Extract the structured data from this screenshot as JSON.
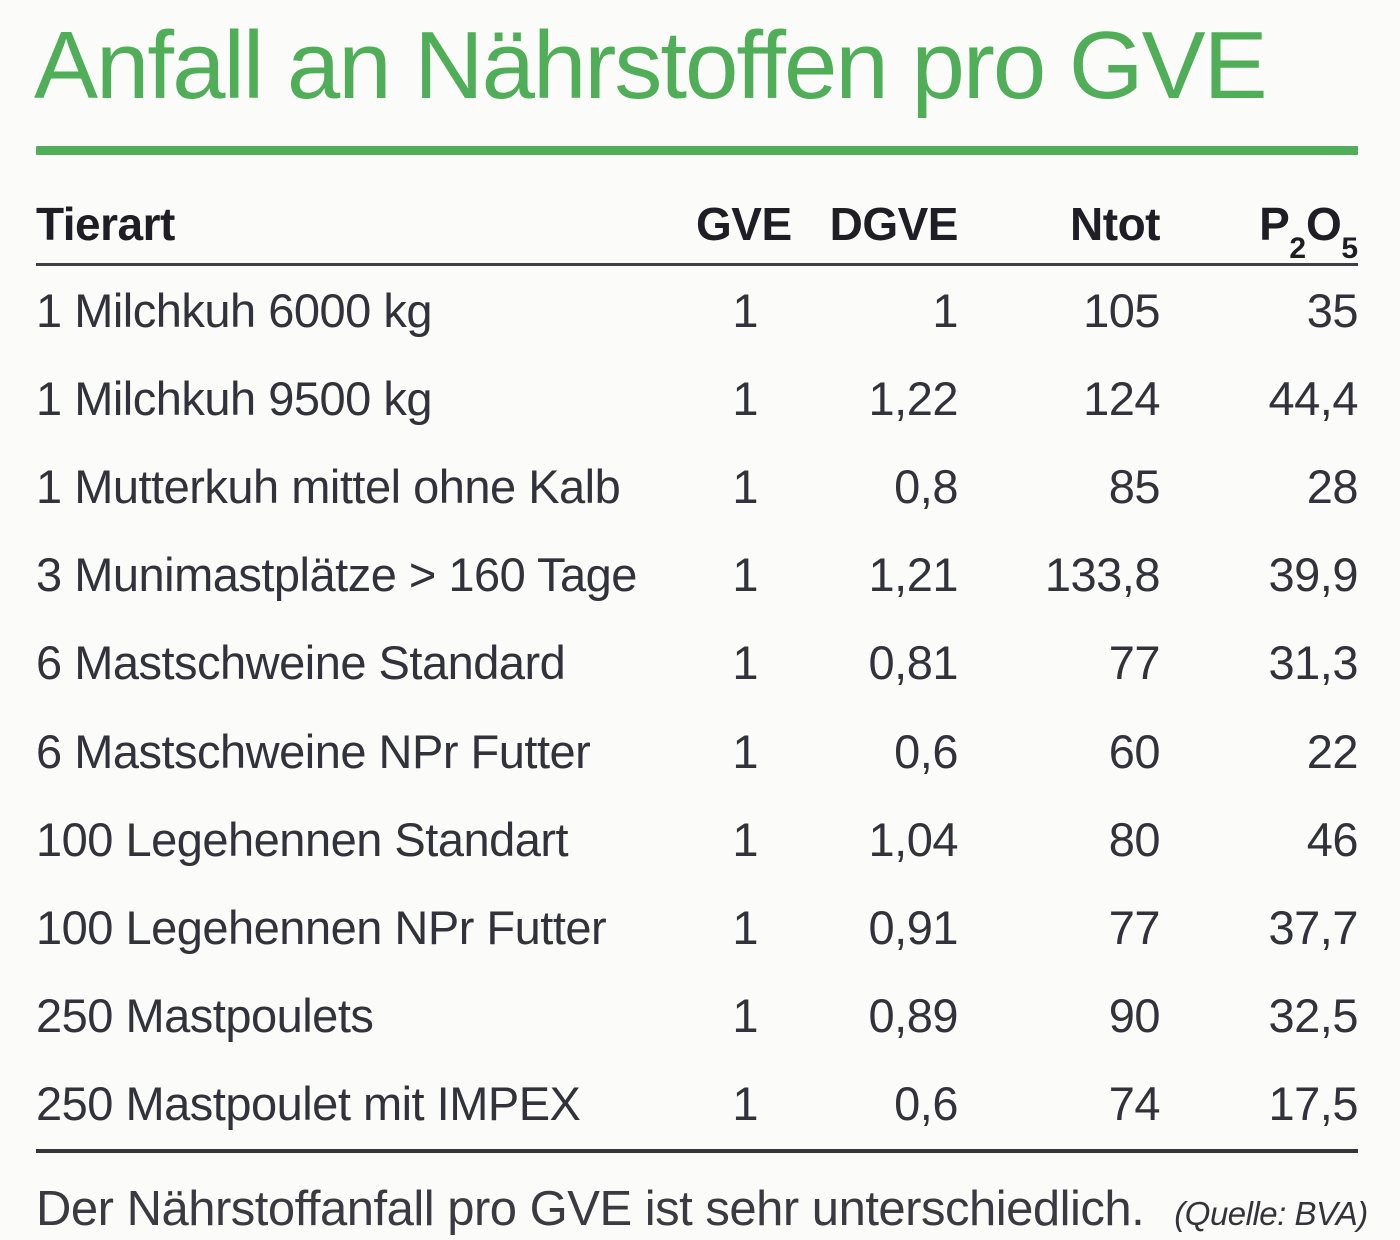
{
  "title": {
    "text": "Anfall an Nährstoffen pro GVE"
  },
  "colors": {
    "accent_green": "#4fae57",
    "text_dark": "#32323a",
    "rule_dark": "#3f3f45",
    "background": "#fbfbf9"
  },
  "table": {
    "columns": {
      "tierart": "Tierart",
      "gve": "GVE",
      "dgve": "DGVE",
      "ntot": "Ntot",
      "p2o5": {
        "base": "P",
        "sub1": "2",
        "mid": "O",
        "sub2": "5"
      }
    },
    "rows": [
      {
        "tierart": "1 Milchkuh 6000 kg",
        "gve": "1",
        "dgve": "1",
        "ntot": "105",
        "p2o5": "35"
      },
      {
        "tierart": "1 Milchkuh 9500 kg",
        "gve": "1",
        "dgve": "1,22",
        "ntot": "124",
        "p2o5": "44,4"
      },
      {
        "tierart": "1 Mutterkuh mittel ohne Kalb",
        "gve": "1",
        "dgve": "0,8",
        "ntot": "85",
        "p2o5": "28"
      },
      {
        "tierart": "3 Munimastplätze > 160 Tage",
        "gve": "1",
        "dgve": "1,21",
        "ntot": "133,8",
        "p2o5": "39,9"
      },
      {
        "tierart": "6 Mastschweine Standard",
        "gve": "1",
        "dgve": "0,81",
        "ntot": "77",
        "p2o5": "31,3"
      },
      {
        "tierart": "6 Mastschweine NPr Futter",
        "gve": "1",
        "dgve": "0,6",
        "ntot": "60",
        "p2o5": "22"
      },
      {
        "tierart": "100 Legehennen Standart",
        "gve": "1",
        "dgve": "1,04",
        "ntot": "80",
        "p2o5": "46"
      },
      {
        "tierart": "100 Legehennen NPr Futter",
        "gve": "1",
        "dgve": "0,91",
        "ntot": "77",
        "p2o5": "37,7"
      },
      {
        "tierart": "250 Mastpoulets",
        "gve": "1",
        "dgve": "0,89",
        "ntot": "90",
        "p2o5": "32,5"
      },
      {
        "tierart": "250 Mastpoulet mit IMPEX",
        "gve": "1",
        "dgve": "0,6",
        "ntot": "74",
        "p2o5": "17,5"
      }
    ]
  },
  "caption": {
    "text": "Der Nährstoffanfall pro GVE ist sehr unterschiedlich.",
    "source": "(Quelle: BVA)"
  }
}
